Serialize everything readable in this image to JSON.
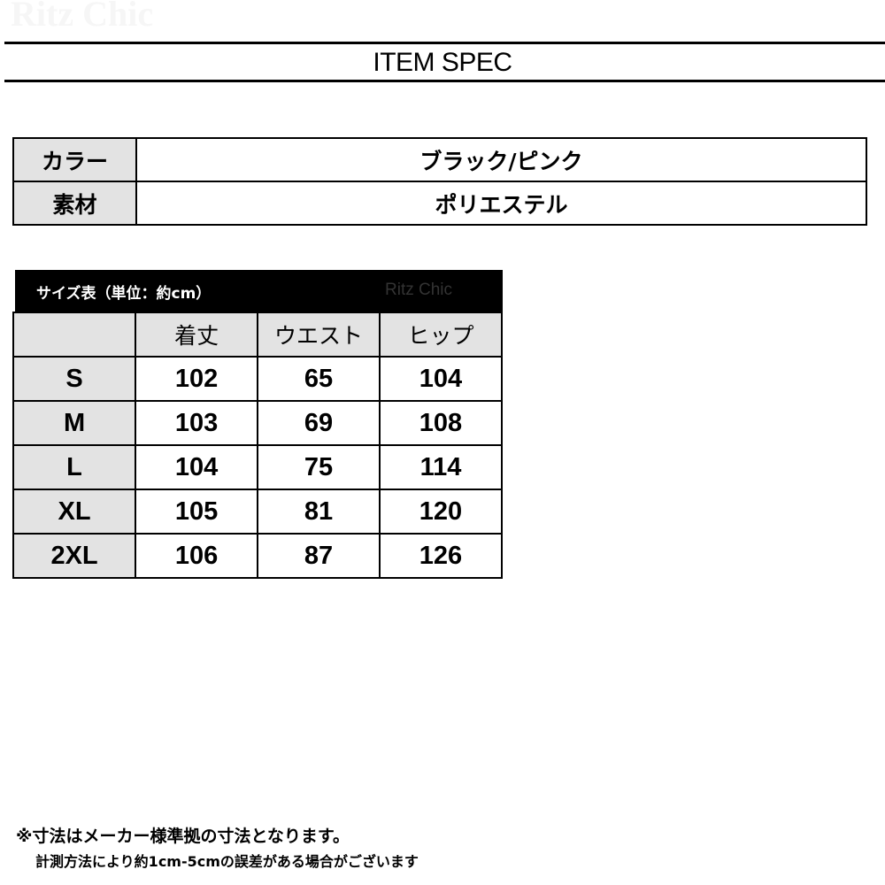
{
  "watermark": "Ritz Chic",
  "title": "ITEM SPEC",
  "spec": [
    {
      "label": "カラー",
      "value": "ブラック/ピンク"
    },
    {
      "label": "素材",
      "value": "ポリエステル"
    }
  ],
  "size_table": {
    "caption": "サイズ表（単位：約cm）",
    "brand": "Ritz Chic",
    "headers": [
      "",
      "着丈",
      "ウエスト",
      "ヒップ"
    ],
    "rows": [
      [
        "S",
        "102",
        "65",
        "104"
      ],
      [
        "M",
        "103",
        "69",
        "108"
      ],
      [
        "L",
        "104",
        "75",
        "114"
      ],
      [
        "XL",
        "105",
        "81",
        "120"
      ],
      [
        "2XL",
        "106",
        "87",
        "126"
      ]
    ]
  },
  "notes": [
    "※寸法はメーカー様準拠の寸法となります。",
    "計測方法により約1cm-5cmの誤差がある場合がございます"
  ]
}
